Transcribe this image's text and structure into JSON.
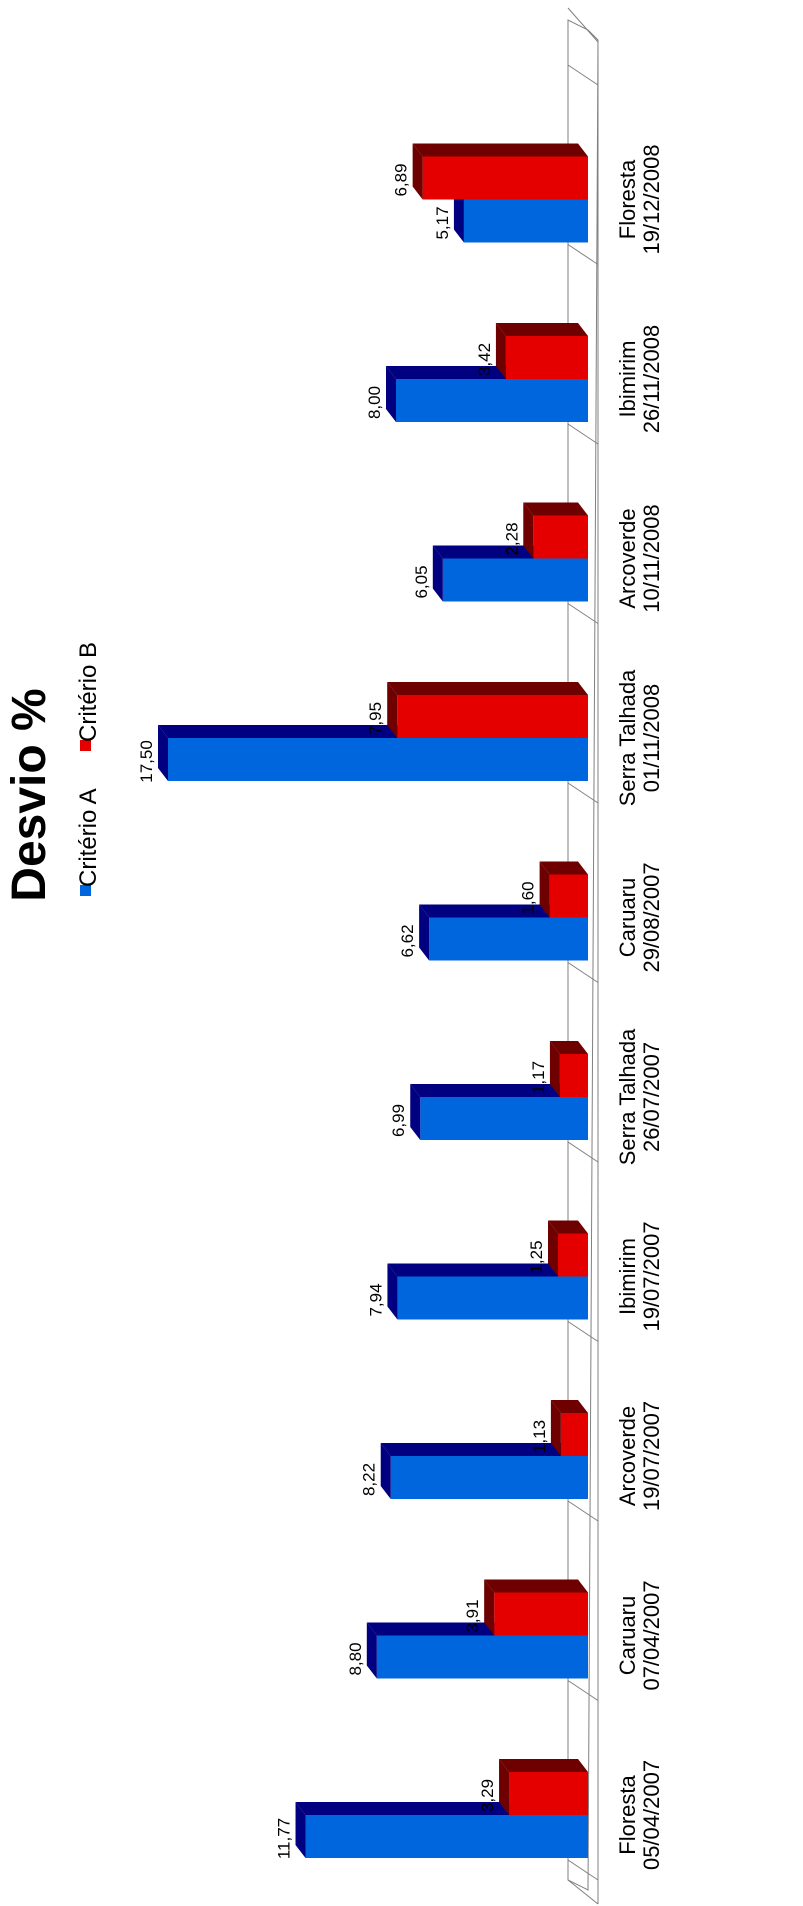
{
  "chart_data": {
    "type": "bar",
    "title": "Desvio %",
    "orientation": "rotated-90-clockwise",
    "legend_position": "top",
    "categories": [
      [
        "Floresta",
        "05/04/2007"
      ],
      [
        "Caruaru",
        "07/04/2007"
      ],
      [
        "Arcoverde",
        "19/07/2007"
      ],
      [
        "Ibimirim",
        "19/07/2007"
      ],
      [
        "Serra Talhada",
        "26/07/2007"
      ],
      [
        "Caruaru",
        "29/08/2007"
      ],
      [
        "Serra Talhada",
        "01/11/2008"
      ],
      [
        "Arcoverde",
        "10/11/2008"
      ],
      [
        "Ibimirim",
        "26/11/2008"
      ],
      [
        "Floresta",
        "19/12/2008"
      ]
    ],
    "series": [
      {
        "name": "Critério A",
        "color": "#0066dd",
        "top_color": "#000080",
        "values": [
          11.77,
          8.8,
          8.22,
          7.94,
          6.99,
          6.62,
          17.5,
          6.05,
          8.0,
          5.17
        ],
        "labels": [
          "11,77",
          "8,80",
          "8,22",
          "7,94",
          "6,99",
          "6,62",
          "17,50",
          "6,05",
          "8,00",
          "5,17"
        ]
      },
      {
        "name": "Critério B",
        "color": "#e50000",
        "top_color": "#6e0000",
        "values": [
          3.29,
          3.91,
          1.13,
          1.25,
          1.17,
          1.6,
          7.95,
          2.28,
          3.42,
          6.89
        ],
        "labels": [
          "3,29",
          "3,91",
          "1,13",
          "1,25",
          "1,17",
          "1,60",
          "7,95",
          "2,28",
          "3,42",
          "6,89"
        ]
      }
    ],
    "ylim": [
      0,
      18
    ],
    "grid": true
  }
}
